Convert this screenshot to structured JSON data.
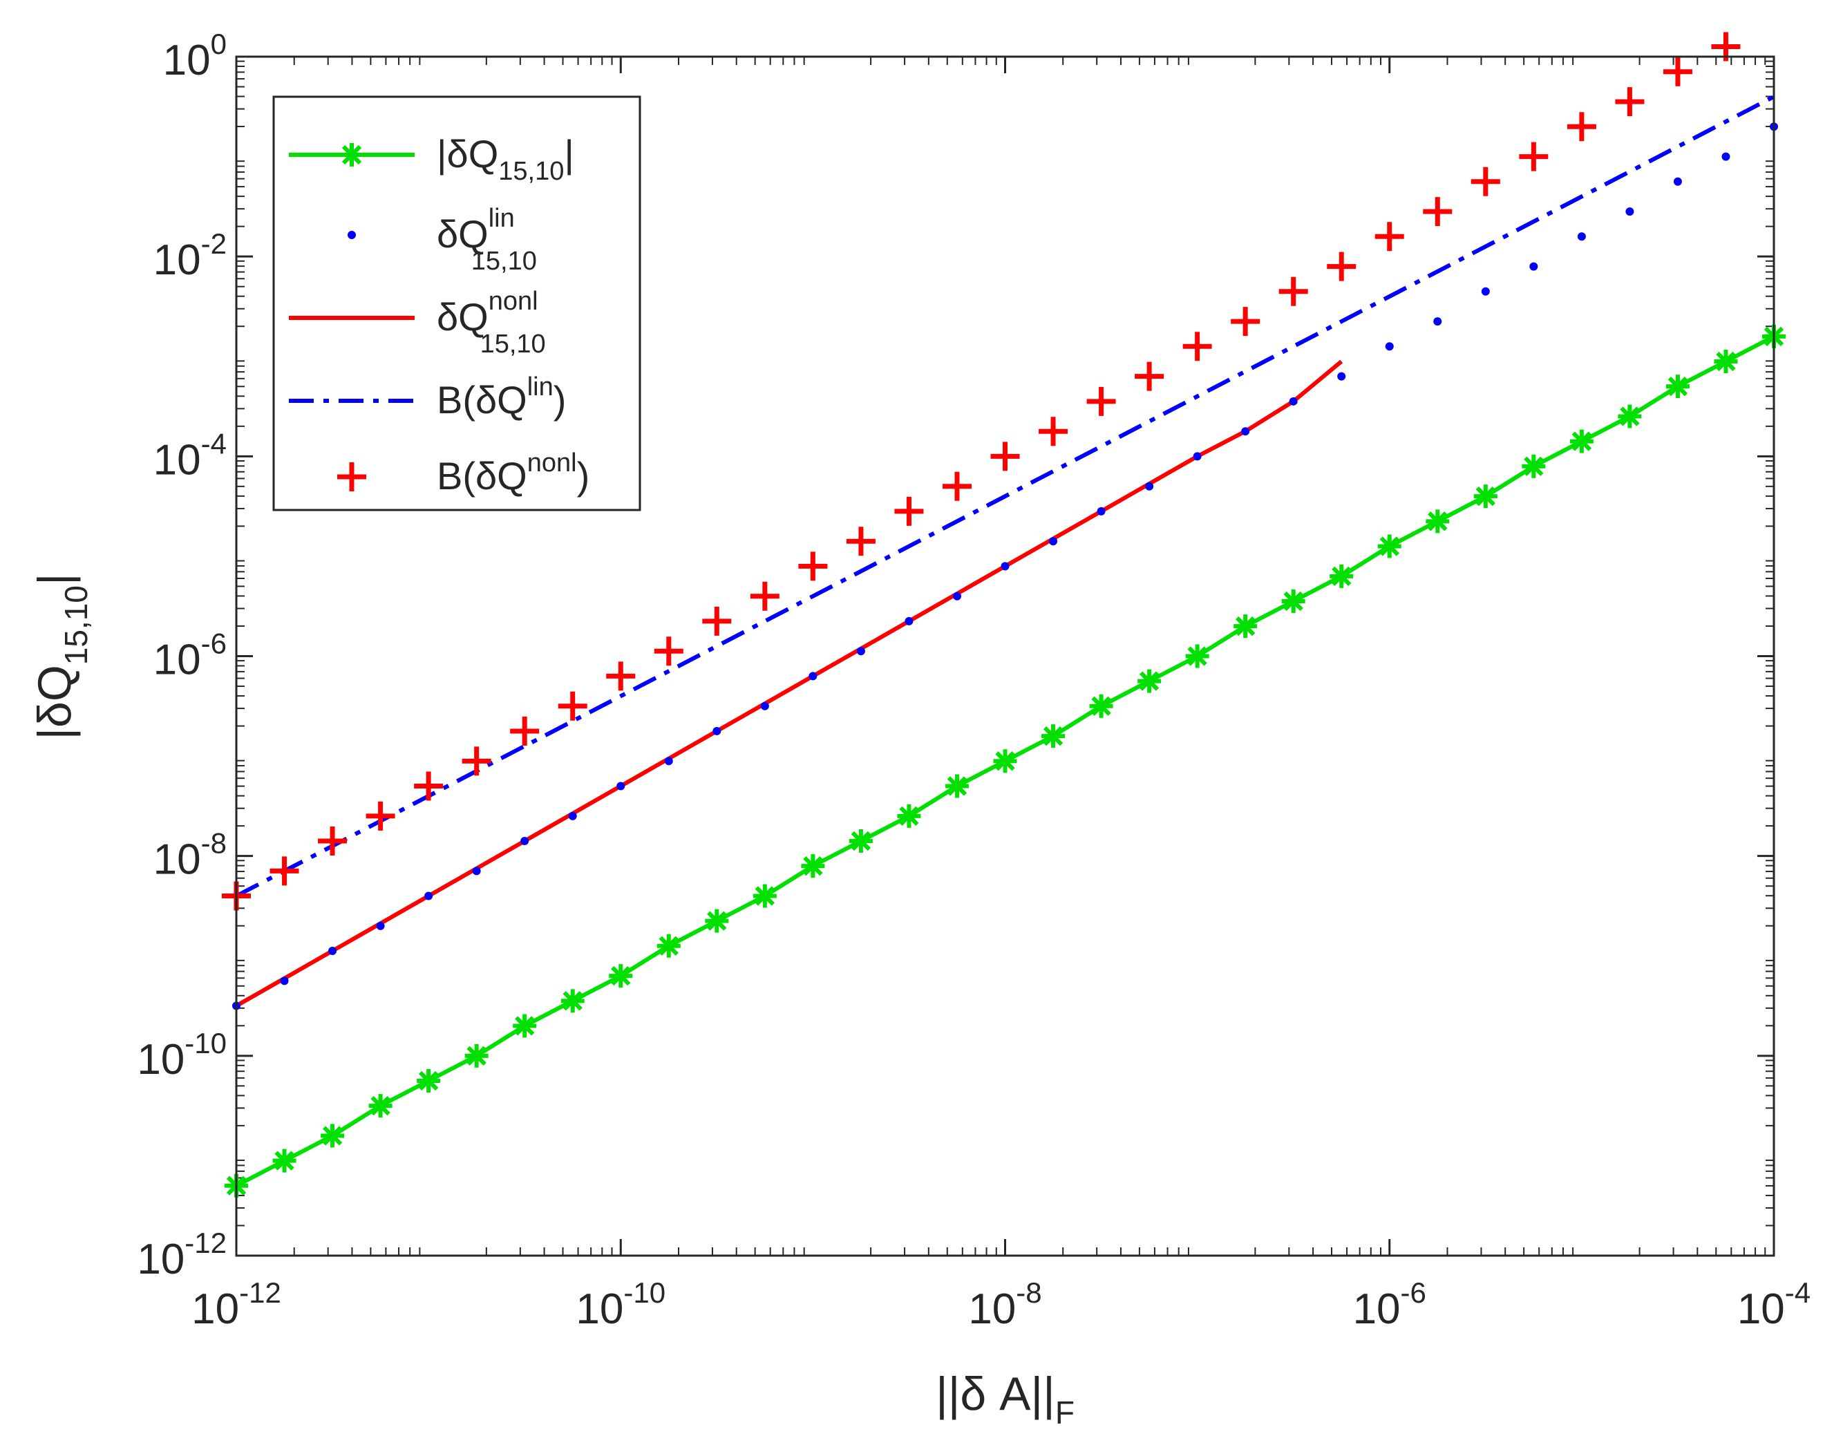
{
  "chart_data": {
    "type": "line",
    "xscale": "log",
    "yscale": "log",
    "xlim": [
      1e-12,
      0.0001
    ],
    "ylim": [
      1e-12,
      1
    ],
    "x_ticks": [
      {
        "base": "10",
        "exp": "-12",
        "value": 1e-12
      },
      {
        "base": "10",
        "exp": "-10",
        "value": 1e-10
      },
      {
        "base": "10",
        "exp": "-8",
        "value": 1e-08
      },
      {
        "base": "10",
        "exp": "-6",
        "value": 1e-06
      },
      {
        "base": "10",
        "exp": "-4",
        "value": 0.0001
      }
    ],
    "y_ticks": [
      {
        "base": "10",
        "exp": "-12",
        "value": 1e-12
      },
      {
        "base": "10",
        "exp": "-10",
        "value": 1e-10
      },
      {
        "base": "10",
        "exp": "-8",
        "value": 1e-08
      },
      {
        "base": "10",
        "exp": "-6",
        "value": 1e-06
      },
      {
        "base": "10",
        "exp": "-4",
        "value": 0.0001
      },
      {
        "base": "10",
        "exp": "-2",
        "value": 0.01
      },
      {
        "base": "10",
        "exp": "0",
        "value": 1
      }
    ],
    "xlabel": {
      "main": "||δ A||",
      "sub": "F"
    },
    "ylabel": {
      "main": "|δQ",
      "sub": "15,10",
      "close": "|"
    },
    "legend_position": "top-left",
    "series_x_log10": [
      -12.0,
      -11.5,
      -11.0,
      -10.5,
      -10.0,
      -9.5,
      -9.0,
      -8.5,
      -8.0,
      -7.5,
      -7.0,
      -6.5,
      -6.0,
      -5.5,
      -5.0,
      -4.5,
      -4.0
    ],
    "series": [
      {
        "name": "|δQ15,10|",
        "legend": {
          "pre": "|δQ",
          "sub": "15,10",
          "sup": "",
          "post": "|"
        },
        "color": "#00e000",
        "style": "solid-asterisk",
        "x_log10": [
          -12.0,
          -11.75,
          -11.5,
          -11.25,
          -11.0,
          -10.75,
          -10.5,
          -10.25,
          -10.0,
          -9.75,
          -9.5,
          -9.25,
          -9.0,
          -8.75,
          -8.5,
          -8.25,
          -8.0,
          -7.75,
          -7.5,
          -7.25,
          -7.0,
          -6.75,
          -6.5,
          -6.25,
          -6.0,
          -5.75,
          -5.5,
          -5.25,
          -5.0,
          -4.75,
          -4.5,
          -4.25,
          -4.0
        ],
        "y_log10": [
          -11.3,
          -11.05,
          -10.8,
          -10.5,
          -10.25,
          -10.0,
          -9.7,
          -9.45,
          -9.2,
          -8.9,
          -8.65,
          -8.4,
          -8.1,
          -7.85,
          -7.6,
          -7.3,
          -7.05,
          -6.8,
          -6.5,
          -6.25,
          -6.0,
          -5.7,
          -5.45,
          -5.2,
          -4.9,
          -4.65,
          -4.4,
          -4.1,
          -3.85,
          -3.6,
          -3.3,
          -3.05,
          -2.8
        ]
      },
      {
        "name": "δQlin15,10",
        "legend": {
          "pre": "δQ",
          "sub": "15,10",
          "sup": "lin",
          "post": ""
        },
        "color": "#0000ff",
        "style": "dots",
        "x_log10": [
          -12.0,
          -11.75,
          -11.5,
          -11.25,
          -11.0,
          -10.75,
          -10.5,
          -10.25,
          -10.0,
          -9.75,
          -9.5,
          -9.25,
          -9.0,
          -8.75,
          -8.5,
          -8.25,
          -8.0,
          -7.75,
          -7.5,
          -7.25,
          -7.0,
          -6.75,
          -6.5,
          -6.25,
          -6.0,
          -5.75,
          -5.5,
          -5.25,
          -5.0,
          -4.75,
          -4.5,
          -4.25,
          -4.0
        ],
        "y_log10": [
          -9.5,
          -9.25,
          -8.95,
          -8.7,
          -8.4,
          -8.15,
          -7.85,
          -7.6,
          -7.3,
          -7.05,
          -6.75,
          -6.5,
          -6.2,
          -5.95,
          -5.65,
          -5.4,
          -5.1,
          -4.85,
          -4.55,
          -4.3,
          -4.0,
          -3.75,
          -3.45,
          -3.2,
          -2.9,
          -2.65,
          -2.35,
          -2.1,
          -1.8,
          -1.55,
          -1.25,
          -1.0,
          -0.7
        ]
      },
      {
        "name": "δQnonl15,10",
        "legend": {
          "pre": "δQ",
          "sub": "15,10",
          "sup": "nonl",
          "post": ""
        },
        "color": "#ff0000",
        "style": "solid",
        "x_log10": [
          -12.0,
          -11.5,
          -11.0,
          -10.5,
          -10.0,
          -9.5,
          -9.0,
          -8.5,
          -8.0,
          -7.5,
          -7.0,
          -6.75,
          -6.5,
          -6.25
        ],
        "y_log10": [
          -9.5,
          -8.95,
          -8.4,
          -7.85,
          -7.3,
          -6.75,
          -6.2,
          -5.65,
          -5.1,
          -4.55,
          -4.0,
          -3.75,
          -3.45,
          -3.05
        ]
      },
      {
        "name": "B(δQlin)",
        "legend": {
          "pre": "B(δQ",
          "sub": "",
          "sup": "lin",
          "post": ")"
        },
        "color": "#0000ff",
        "style": "dashdot",
        "x_log10": [
          -12.0,
          -4.0
        ],
        "y_log10": [
          -8.4,
          -0.4
        ]
      },
      {
        "name": "B(δQnonl)",
        "legend": {
          "pre": "B(δQ",
          "sub": "",
          "sup": "nonl",
          "post": ")"
        },
        "color": "#ff0000",
        "style": "plus",
        "x_log10": [
          -12.0,
          -11.75,
          -11.5,
          -11.25,
          -11.0,
          -10.75,
          -10.5,
          -10.25,
          -10.0,
          -9.75,
          -9.5,
          -9.25,
          -9.0,
          -8.75,
          -8.5,
          -8.25,
          -8.0,
          -7.75,
          -7.5,
          -7.25,
          -7.0,
          -6.75,
          -6.5,
          -6.25,
          -6.0,
          -5.75,
          -5.5,
          -5.25,
          -5.0,
          -4.75,
          -4.5,
          -4.25
        ],
        "y_log10": [
          -8.4,
          -8.15,
          -7.85,
          -7.6,
          -7.3,
          -7.05,
          -6.75,
          -6.5,
          -6.2,
          -5.95,
          -5.65,
          -5.4,
          -5.1,
          -4.85,
          -4.55,
          -4.3,
          -4.0,
          -3.75,
          -3.45,
          -3.2,
          -2.9,
          -2.65,
          -2.35,
          -2.1,
          -1.8,
          -1.55,
          -1.25,
          -1.0,
          -0.7,
          -0.45,
          -0.15,
          0.1
        ]
      }
    ]
  }
}
